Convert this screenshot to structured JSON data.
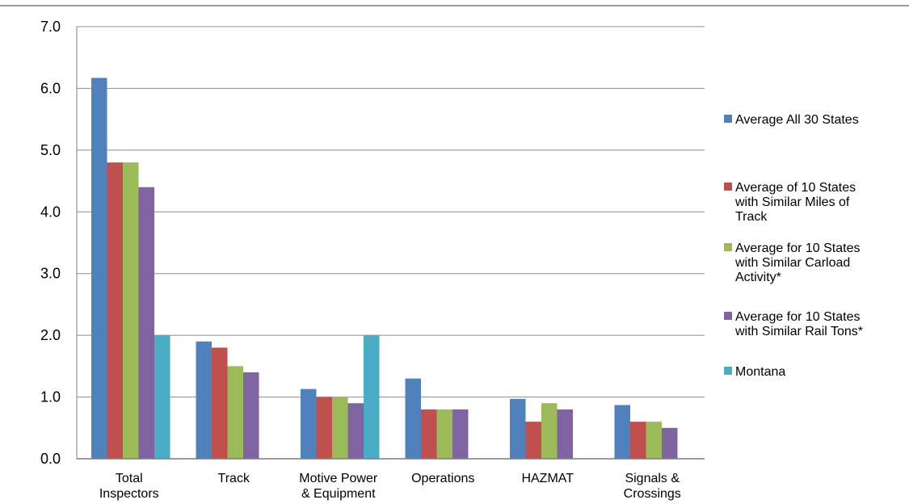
{
  "chart_data": {
    "type": "bar",
    "categories": [
      [
        "Total",
        "Inspectors"
      ],
      [
        "Track"
      ],
      [
        "Motive Power",
        "& Equipment"
      ],
      [
        "Operations"
      ],
      [
        "HAZMAT"
      ],
      [
        "Signals &",
        "Crossings"
      ]
    ],
    "series": [
      {
        "name": [
          "Average All 30 States"
        ],
        "color": "#4f81bd",
        "values": [
          6.17,
          1.9,
          1.13,
          1.3,
          0.97,
          0.87
        ]
      },
      {
        "name": [
          "Average of 10 States",
          "with Similar Miles of",
          "Track"
        ],
        "color": "#c0504d",
        "values": [
          4.8,
          1.8,
          1.0,
          0.8,
          0.6,
          0.6
        ]
      },
      {
        "name": [
          "Average for 10 States",
          "with Similar Carload",
          "Activity*"
        ],
        "color": "#9bbb59",
        "values": [
          4.8,
          1.5,
          1.0,
          0.8,
          0.9,
          0.6
        ]
      },
      {
        "name": [
          "Average for 10 States",
          "with Similar Rail Tons*"
        ],
        "color": "#8064a2",
        "values": [
          4.4,
          1.4,
          0.9,
          0.8,
          0.8,
          0.5
        ]
      },
      {
        "name": [
          "Montana"
        ],
        "color": "#4bacc6",
        "values": [
          2.0,
          0.0,
          2.0,
          0.0,
          0.0,
          0.0
        ]
      }
    ],
    "y_ticks": [
      "0.0",
      "1.0",
      "2.0",
      "3.0",
      "4.0",
      "5.0",
      "6.0",
      "7.0"
    ],
    "ylim": [
      0,
      7
    ],
    "grid": true,
    "legend_position": "right",
    "title": "",
    "xlabel": "",
    "ylabel": ""
  }
}
